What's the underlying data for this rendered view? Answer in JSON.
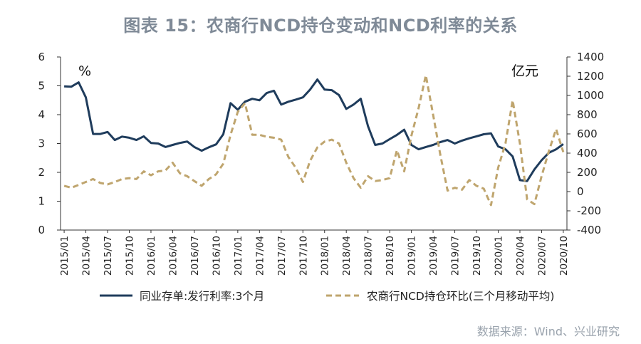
{
  "title": "图表 15：农商行NCD持仓变动和NCD利率的关系",
  "source": "数据来源：Wind、兴业研究",
  "chart_data": {
    "type": "line",
    "left_unit": "%",
    "right_unit": "亿元",
    "y_left": {
      "min": 0,
      "max": 6,
      "ticks": [
        0,
        1,
        2,
        3,
        4,
        5,
        6
      ]
    },
    "y_right": {
      "min": -400,
      "max": 1400,
      "ticks": [
        -400,
        -200,
        0,
        200,
        400,
        600,
        800,
        1000,
        1200,
        1400
      ]
    },
    "x_tick_labels": [
      "2015/01",
      "2015/04",
      "2015/07",
      "2015/10",
      "2016/01",
      "2016/04",
      "2016/07",
      "2016/10",
      "2017/01",
      "2017/04",
      "2017/07",
      "2017/10",
      "2018/01",
      "2018/04",
      "2018/07",
      "2018/10",
      "2019/01",
      "2019/04",
      "2019/07",
      "2019/10",
      "2020/01",
      "2020/04",
      "2020/07",
      "2020/10"
    ],
    "grid": false,
    "legend_position": "bottom",
    "series": [
      {
        "name": "同业存单:发行利率:3个月",
        "axis": "left",
        "color": "#1f3c5c",
        "style": "solid",
        "values": [
          4.98,
          4.97,
          5.12,
          4.6,
          3.33,
          3.33,
          3.4,
          3.12,
          3.24,
          3.2,
          3.12,
          3.25,
          3.02,
          3.0,
          2.88,
          2.95,
          3.02,
          3.07,
          2.88,
          2.75,
          2.87,
          2.97,
          3.32,
          4.4,
          4.17,
          4.45,
          4.55,
          4.5,
          4.75,
          4.83,
          4.35,
          4.45,
          4.52,
          4.6,
          4.87,
          5.22,
          4.87,
          4.85,
          4.68,
          4.2,
          4.35,
          4.55,
          3.6,
          2.95,
          3.0,
          3.15,
          3.3,
          3.48,
          2.95,
          2.8,
          2.88,
          2.95,
          3.05,
          3.12,
          3.0,
          3.1,
          3.18,
          3.25,
          3.32,
          3.35,
          2.9,
          2.8,
          2.55,
          1.73,
          1.7,
          2.1,
          2.42,
          2.68,
          2.8,
          2.98
        ]
      },
      {
        "name": "农商行NCD持仓环比(三个月移动平均)",
        "axis": "right",
        "color": "#bfa56e",
        "style": "dashed",
        "values": [
          60,
          40,
          70,
          100,
          130,
          90,
          75,
          100,
          130,
          140,
          130,
          210,
          170,
          210,
          220,
          300,
          190,
          160,
          110,
          60,
          130,
          180,
          290,
          590,
          830,
          920,
          590,
          590,
          570,
          560,
          540,
          360,
          250,
          100,
          320,
          460,
          520,
          540,
          500,
          300,
          140,
          40,
          160,
          110,
          120,
          140,
          430,
          210,
          580,
          870,
          1210,
          800,
          380,
          10,
          40,
          20,
          120,
          60,
          30,
          -140,
          250,
          500,
          950,
          500,
          -80,
          -130,
          160,
          420,
          650,
          410
        ]
      }
    ]
  }
}
